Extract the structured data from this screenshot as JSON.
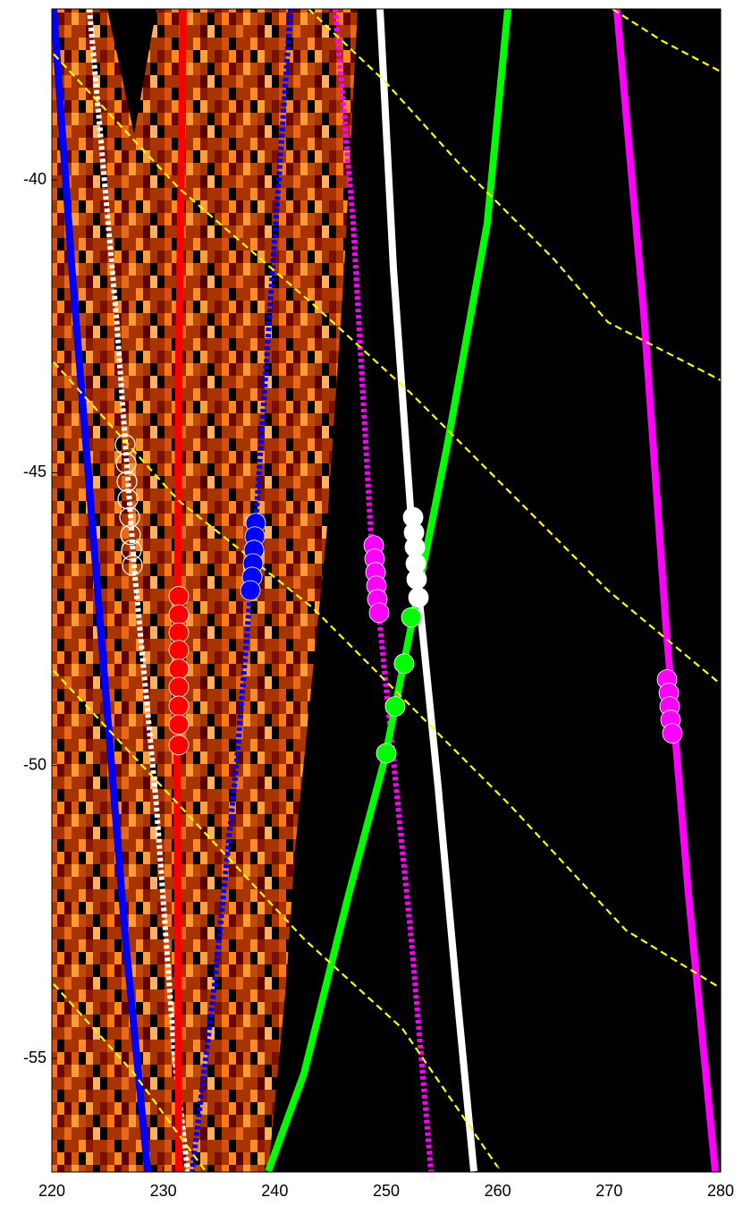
{
  "chart_data": {
    "type": "line",
    "xlim": [
      220,
      280
    ],
    "ylim": [
      -56.94,
      -37.08
    ],
    "xticks": [
      220,
      230,
      240,
      250,
      260,
      270,
      280
    ],
    "yticks": [
      -55,
      -50,
      -45,
      -40
    ],
    "series": [
      {
        "color": "#0000ff",
        "style": "solid",
        "x": [
          220.16,
          221.8,
          223.4,
          225.0,
          226.6,
          228.6
        ],
        "values": [
          -37.08,
          -41.51,
          -45.33,
          -49.15,
          -52.96,
          -56.93
        ]
      },
      {
        "color": "#ffffff",
        "style": "dotted",
        "x": [
          223.37,
          225.78,
          227.38,
          229.38,
          230.99,
          232.19
        ],
        "values": [
          -37.08,
          -42.33,
          -46.61,
          -50.67,
          -54.95,
          -56.93
        ]
      },
      {
        "color": "#ff0000",
        "style": "solid",
        "x": [
          231.79,
          231.39,
          231.23,
          231.39
        ],
        "values": [
          -37.08,
          -43.04,
          -49.15,
          -56.93
        ]
      },
      {
        "color": "#0000ff",
        "style": "dotted",
        "x": [
          241.42,
          239.81,
          238.21,
          236.6,
          234.6,
          232.59
        ],
        "values": [
          -37.08,
          -41.51,
          -46.09,
          -49.91,
          -53.73,
          -56.93
        ]
      },
      {
        "color": "#ff00ff",
        "style": "dotted",
        "x": [
          245.43,
          247.03,
          248.64,
          250.64,
          252.24,
          254.01
        ],
        "values": [
          -37.08,
          -40.75,
          -46.09,
          -49.91,
          -52.96,
          -56.93
        ]
      },
      {
        "color": "#ffffff",
        "style": "solid",
        "x": [
          249.44,
          250.64,
          252.24,
          254.65,
          256.26,
          257.86
        ],
        "values": [
          -37.08,
          -41.51,
          -45.79,
          -50.37,
          -53.73,
          -56.93
        ]
      },
      {
        "color": "#00ff00",
        "style": "solid",
        "x": [
          260.91,
          259.06,
          255.45,
          252.24,
          249.84,
          246.63,
          242.62,
          239.41
        ],
        "values": [
          -37.08,
          -40.75,
          -44.56,
          -47.62,
          -49.91,
          -52.2,
          -55.26,
          -56.93
        ]
      },
      {
        "color": "#ff00ff",
        "style": "solid",
        "x": [
          270.69,
          273.1,
          275.1,
          277.11,
          279.52
        ],
        "values": [
          -37.08,
          -42.27,
          -47.62,
          -52.2,
          -56.93
        ]
      },
      {
        "color": "#ffff00",
        "style": "dashed",
        "x": [
          270.29,
          274.7,
          280
        ],
        "values": [
          -37.08,
          -37.62,
          -38.15
        ]
      },
      {
        "color": "#ffff00",
        "style": "dashed",
        "x": [
          243.02,
          249.84,
          257.06,
          265.08,
          269.89,
          280
        ],
        "values": [
          -37.08,
          -38.31,
          -39.83,
          -41.36,
          -42.43,
          -43.42
        ]
      },
      {
        "color": "#ffff00",
        "style": "dashed",
        "x": [
          220.16,
          231.39,
          243.42,
          252.25,
          261.87,
          269.89,
          280
        ],
        "values": [
          -37.85,
          -40.14,
          -42.12,
          -43.65,
          -45.48,
          -47.01,
          -48.61
        ]
      },
      {
        "color": "#ffff00",
        "style": "dashed",
        "x": [
          220.16,
          231.39,
          243.42,
          251.44,
          261.07,
          271.5,
          280
        ],
        "values": [
          -43.11,
          -45.48,
          -47.31,
          -48.84,
          -50.67,
          -52.81,
          -53.8
        ]
      },
      {
        "color": "#ffff00",
        "style": "dashed",
        "x": [
          220.16,
          231.39,
          242.62,
          251.44,
          260.27
        ],
        "values": [
          -48.38,
          -50.67,
          -52.96,
          -54.49,
          -56.93
        ]
      },
      {
        "color": "#ffff00",
        "style": "dashed",
        "x": [
          220.16,
          227.38,
          233.8
        ],
        "values": [
          -53.73,
          -55.26,
          -56.93
        ]
      },
      {
        "color": "#ffffff",
        "style": "markers",
        "filled": false,
        "x": [
          226.58,
          226.66,
          226.74,
          226.82,
          226.98,
          227.06,
          227.14,
          227.22
        ],
        "values": [
          -44.52,
          -44.84,
          -45.15,
          -45.45,
          -45.76,
          -46.06,
          -46.32,
          -46.58
        ]
      },
      {
        "color": "#ff0000",
        "style": "markers",
        "filled": true,
        "x": [
          231.39,
          231.39,
          231.39,
          231.39,
          231.39,
          231.39,
          231.39,
          231.39,
          231.39
        ],
        "values": [
          -47.11,
          -47.42,
          -47.73,
          -48.03,
          -48.35,
          -48.66,
          -48.98,
          -49.3,
          -49.65
        ]
      },
      {
        "color": "#0000ff",
        "style": "markers",
        "filled": true,
        "x": [
          238.29,
          238.21,
          238.13,
          238.05,
          237.97,
          237.81
        ],
        "values": [
          -45.86,
          -46.09,
          -46.32,
          -46.55,
          -46.78,
          -47.01
        ]
      },
      {
        "color": "#ff00ff",
        "style": "markers",
        "filled": true,
        "x": [
          248.88,
          248.96,
          249.04,
          249.12,
          249.2,
          249.36
        ],
        "values": [
          -46.24,
          -46.47,
          -46.7,
          -46.93,
          -47.16,
          -47.39
        ]
      },
      {
        "color": "#ffffff",
        "style": "markers",
        "filled": true,
        "x": [
          252.41,
          252.49,
          252.57,
          252.65,
          252.73,
          252.89
        ],
        "values": [
          -45.76,
          -46.02,
          -46.27,
          -46.55,
          -46.82,
          -47.13
        ]
      },
      {
        "color": "#00ff00",
        "style": "markers",
        "filled": true,
        "x": [
          252.25,
          251.6,
          250.8,
          250.0
        ],
        "values": [
          -47.47,
          -48.26,
          -48.99,
          -49.79
        ]
      },
      {
        "color": "#ff00ff",
        "style": "markers",
        "filled": true,
        "x": [
          275.19,
          275.35,
          275.43,
          275.51,
          275.67
        ],
        "values": [
          -48.53,
          -48.76,
          -48.99,
          -49.22,
          -49.45
        ]
      }
    ]
  }
}
